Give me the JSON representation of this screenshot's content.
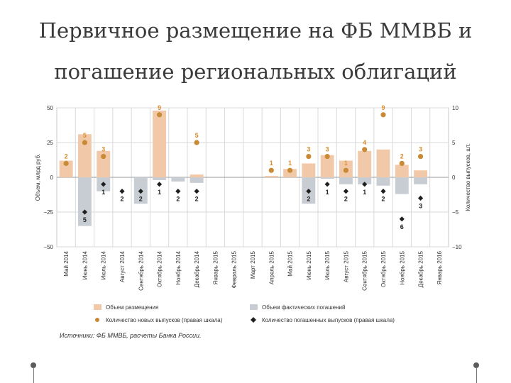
{
  "slide": {
    "title_line1": "Первичное размещение на ФБ ММВБ и",
    "title_line2": "погашение региональных облигаций",
    "source": "Источники: ФБ ММВБ, расчеты Банка России."
  },
  "chart_data": {
    "type": "bar",
    "categories": [
      "Май 2014",
      "Июнь 2014",
      "Июль 2014",
      "Август 2014",
      "Сентябрь 2014",
      "Октябрь 2014",
      "Ноябрь 2014",
      "Декабрь 2014",
      "Январь 2015",
      "Февраль 2015",
      "Март 2015",
      "Апрель 2015",
      "Май 2015",
      "Июнь 2015",
      "Июль 2015",
      "Август 2015",
      "Сентябрь 2015",
      "Октябрь 2015",
      "Ноябрь 2015",
      "Декабрь 2015",
      "Январь 2016"
    ],
    "ylabel": "Объем, млрд руб.",
    "y2label": "Количество выпусков, шт.",
    "ylim": [
      -50,
      50
    ],
    "y2lim": [
      -10,
      10
    ],
    "yticks": [
      "50",
      "25",
      "0",
      "−25",
      "−50"
    ],
    "y2ticks": [
      "10",
      "5",
      "0",
      "−5",
      "−10"
    ],
    "series": [
      {
        "name": "Объем размещения",
        "axis": "left",
        "color": "#f2c9a8",
        "values": [
          12,
          31,
          19,
          0,
          0,
          48,
          0,
          2,
          0,
          0,
          0,
          1,
          6,
          10,
          16,
          12,
          19,
          20,
          9,
          5,
          0
        ]
      },
      {
        "name": "Объем фактических погашений",
        "axis": "left",
        "color": "#c8ccd3",
        "values": [
          0,
          -35,
          -10,
          0,
          -19,
          -2,
          -3,
          -4,
          0,
          0,
          0,
          0,
          0,
          -19,
          -1,
          -5,
          -5,
          -6,
          -12,
          -5,
          0
        ]
      },
      {
        "name": "Количество новых выпусков (правая шкала)",
        "axis": "right",
        "color": "#c98a36",
        "values": [
          2,
          5,
          3,
          null,
          null,
          9,
          null,
          5,
          null,
          null,
          null,
          1,
          1,
          3,
          3,
          1,
          4,
          9,
          2,
          3,
          null
        ],
        "labels": [
          "2",
          "5",
          "3",
          "",
          "",
          "9",
          "",
          "5",
          "",
          "",
          "",
          "1",
          "1",
          "3",
          "3",
          "1",
          "4",
          "9",
          "2",
          "3",
          ""
        ]
      },
      {
        "name": "Количество погашенных выпусков (правая шкала)",
        "axis": "right",
        "color": "#1f1f1f",
        "values": [
          null,
          -5,
          -1,
          -2,
          -2,
          -1,
          -2,
          -2,
          null,
          null,
          null,
          null,
          null,
          -2,
          -1,
          -2,
          -1,
          -2,
          -6,
          -3,
          null
        ],
        "labels": [
          "",
          "5",
          "1",
          "2",
          "2",
          "1",
          "2",
          "2",
          "",
          "",
          "",
          "",
          "",
          "2",
          "1",
          "2",
          "1",
          "2",
          "6",
          "3",
          ""
        ]
      }
    ],
    "grid": true,
    "legend": "bottom"
  }
}
